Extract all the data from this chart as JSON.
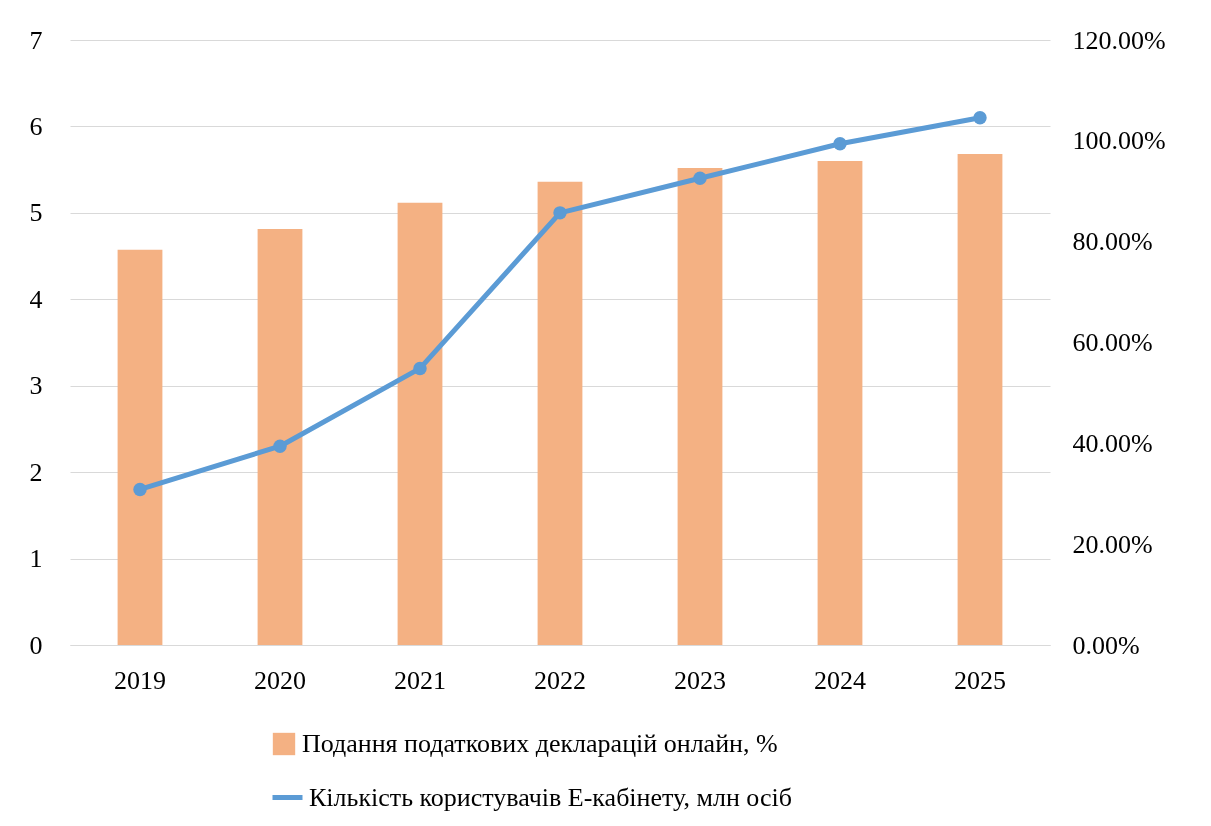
{
  "chart_data": {
    "type": "bar",
    "categories": [
      "2019",
      "2020",
      "2021",
      "2022",
      "2023",
      "2024",
      "2025"
    ],
    "series": [
      {
        "name": "Подання податкових декларацій онлайн, %",
        "axis": "y2",
        "color": "#f4b183",
        "values": [
          78.4,
          82.5,
          87.7,
          91.9,
          94.6,
          96.0,
          97.4
        ]
      },
      {
        "name": "Кількість користувачів Е-кабінету, млн осіб",
        "type": "line",
        "axis": "y",
        "color": "#5b9bd5",
        "marker": "circle",
        "values": [
          1.8,
          2.3,
          3.2,
          5.0,
          5.4,
          5.8,
          6.1
        ]
      }
    ],
    "ylim": [
      0,
      7
    ],
    "yticks": [
      0,
      1,
      2,
      3,
      4,
      5,
      6,
      7
    ],
    "y2lim": [
      0,
      120
    ],
    "y2ticks": [
      {
        "value": 0,
        "label": "0.00%"
      },
      {
        "value": 20,
        "label": "20.00%"
      },
      {
        "value": 40,
        "label": "40.00%"
      },
      {
        "value": 60,
        "label": "60.00%"
      },
      {
        "value": 80,
        "label": "80.00%"
      },
      {
        "value": 100,
        "label": "100.00%"
      },
      {
        "value": 120,
        "label": "120.00%"
      }
    ],
    "grid": "y",
    "legend": "bottom"
  }
}
